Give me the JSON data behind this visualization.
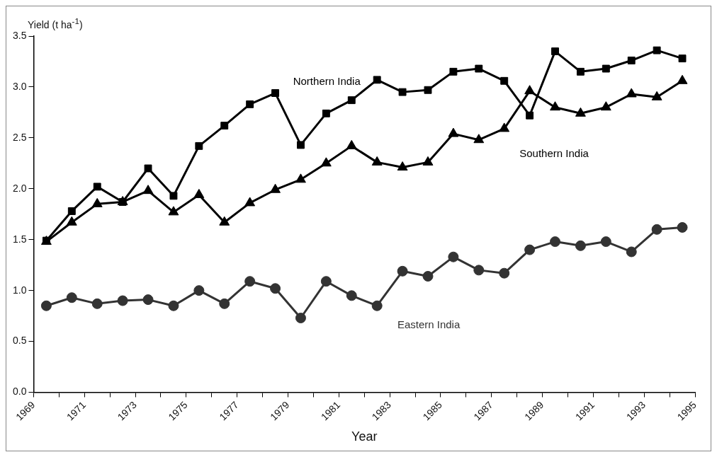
{
  "chart_data": {
    "type": "line",
    "ylabel": "Yield (t ha$^{-1}$)",
    "xlabel": "Year",
    "x": [
      1969.5,
      1970.5,
      1971.5,
      1972.5,
      1973.5,
      1974.5,
      1975.5,
      1976.5,
      1977.5,
      1978.5,
      1979.5,
      1980.5,
      1981.5,
      1982.5,
      1983.5,
      1984.5,
      1985.5,
      1986.5,
      1987.5,
      1988.5,
      1989.5,
      1990.5,
      1991.5,
      1992.5,
      1993.5,
      1994.5
    ],
    "series": [
      {
        "name": "Northern India",
        "color": "#000000",
        "marker": "square",
        "values": [
          1.49,
          1.78,
          2.02,
          1.87,
          2.2,
          1.93,
          2.42,
          2.62,
          2.83,
          2.94,
          2.43,
          2.74,
          2.87,
          3.07,
          2.95,
          2.97,
          3.15,
          3.18,
          3.06,
          2.72,
          3.35,
          3.15,
          3.18,
          3.26,
          3.36,
          3.28
        ]
      },
      {
        "name": "Southern India",
        "color": "#000000",
        "marker": "triangle",
        "values": [
          1.48,
          1.67,
          1.85,
          1.87,
          1.98,
          1.77,
          1.94,
          1.67,
          1.86,
          1.99,
          2.09,
          2.25,
          2.42,
          2.26,
          2.21,
          2.26,
          2.54,
          2.48,
          2.59,
          2.96,
          2.8,
          2.74,
          2.8,
          2.93,
          2.9,
          3.06
        ]
      },
      {
        "name": "Eastern India",
        "color": "#333333",
        "marker": "circle",
        "values": [
          0.85,
          0.93,
          0.87,
          0.9,
          0.91,
          0.85,
          1.0,
          0.87,
          1.09,
          1.02,
          0.73,
          1.09,
          0.95,
          0.85,
          1.19,
          1.14,
          1.33,
          1.2,
          1.17,
          1.4,
          1.48,
          1.44,
          1.48,
          1.38,
          1.6,
          1.62
        ]
      }
    ],
    "xlim": [
      1969,
      1995
    ],
    "xticks": [
      1969,
      {
        "value": 1970,
        "label": null
      },
      1971,
      {
        "value": 1972,
        "label": null
      },
      1973,
      {
        "value": 1974,
        "label": null
      },
      1975,
      {
        "value": 1976,
        "label": null
      },
      1977,
      {
        "value": 1978,
        "label": null
      },
      1979,
      {
        "value": 1980,
        "label": null
      },
      1981,
      {
        "value": 1982,
        "label": null
      },
      1983,
      {
        "value": 1984,
        "label": null
      },
      1985,
      {
        "value": 1986,
        "label": null
      },
      1987,
      {
        "value": 1988,
        "label": null
      },
      1989,
      {
        "value": 1990,
        "label": null
      },
      1991,
      {
        "value": 1992,
        "label": null
      },
      1993,
      {
        "value": 1994,
        "label": null
      },
      1995
    ],
    "ylim": [
      0,
      3.5
    ],
    "yticks": [
      {
        "value": 0,
        "label": "0.0"
      },
      {
        "value": 0.5,
        "label": "0.5"
      },
      {
        "value": 1,
        "label": "1.0"
      },
      {
        "value": 1.5,
        "label": "1.5"
      },
      {
        "value": 2,
        "label": "2.0"
      },
      {
        "value": 2.5,
        "label": "2.5"
      },
      {
        "value": 3,
        "label": "3.0"
      },
      {
        "value": 3.5,
        "label": "3.5"
      }
    ],
    "grid": false,
    "legend": false,
    "line_style": "solid"
  }
}
